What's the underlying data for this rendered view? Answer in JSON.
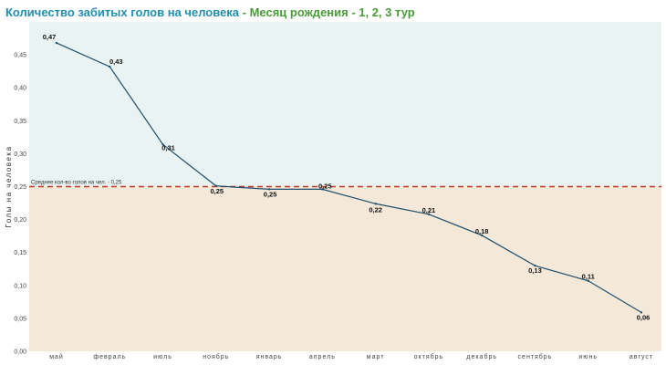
{
  "title": {
    "part1": "Количество забитых голов на человека",
    "separator": " - ",
    "part2": "Месяц рождения - 1, 2, 3 тур"
  },
  "colors": {
    "upper_band": "#e9f3f1",
    "lower_band": "#f4e9d8",
    "line": "#1d4f6e",
    "avg_line": "#c0392b",
    "title_primary": "#1f8fb0",
    "title_secondary": "#4a9a3a"
  },
  "chart_data": {
    "type": "line",
    "title": "Количество забитых голов на человека - Месяц рождения - 1, 2, 3 тур",
    "xlabel": "",
    "ylabel": "Голы на человека",
    "ylim": [
      0,
      0.5
    ],
    "yticks": [
      "0,00",
      "0,05",
      "0,10",
      "0,15",
      "0,20",
      "0,25",
      "0,30",
      "0,35",
      "0,40",
      "0,45"
    ],
    "categories": [
      "май",
      "февраль",
      "июль",
      "ноябрь",
      "январь",
      "апрель",
      "март",
      "октябрь",
      "декабрь",
      "сентябрь",
      "июнь",
      "август"
    ],
    "values": [
      0.468,
      0.432,
      0.314,
      0.251,
      0.246,
      0.246,
      0.224,
      0.208,
      0.176,
      0.13,
      0.107,
      0.059
    ],
    "data_labels": [
      "0,47",
      "0,43",
      "0,31",
      "0,25",
      "0,25",
      "0,25",
      "0,22",
      "0,21",
      "0,18",
      "0,13",
      "0,11",
      "0,06"
    ],
    "reference_line": {
      "value": 0.25,
      "label": "Среднее кол-во голов на чел. - 0,25"
    },
    "grid": false,
    "legend": "none"
  }
}
